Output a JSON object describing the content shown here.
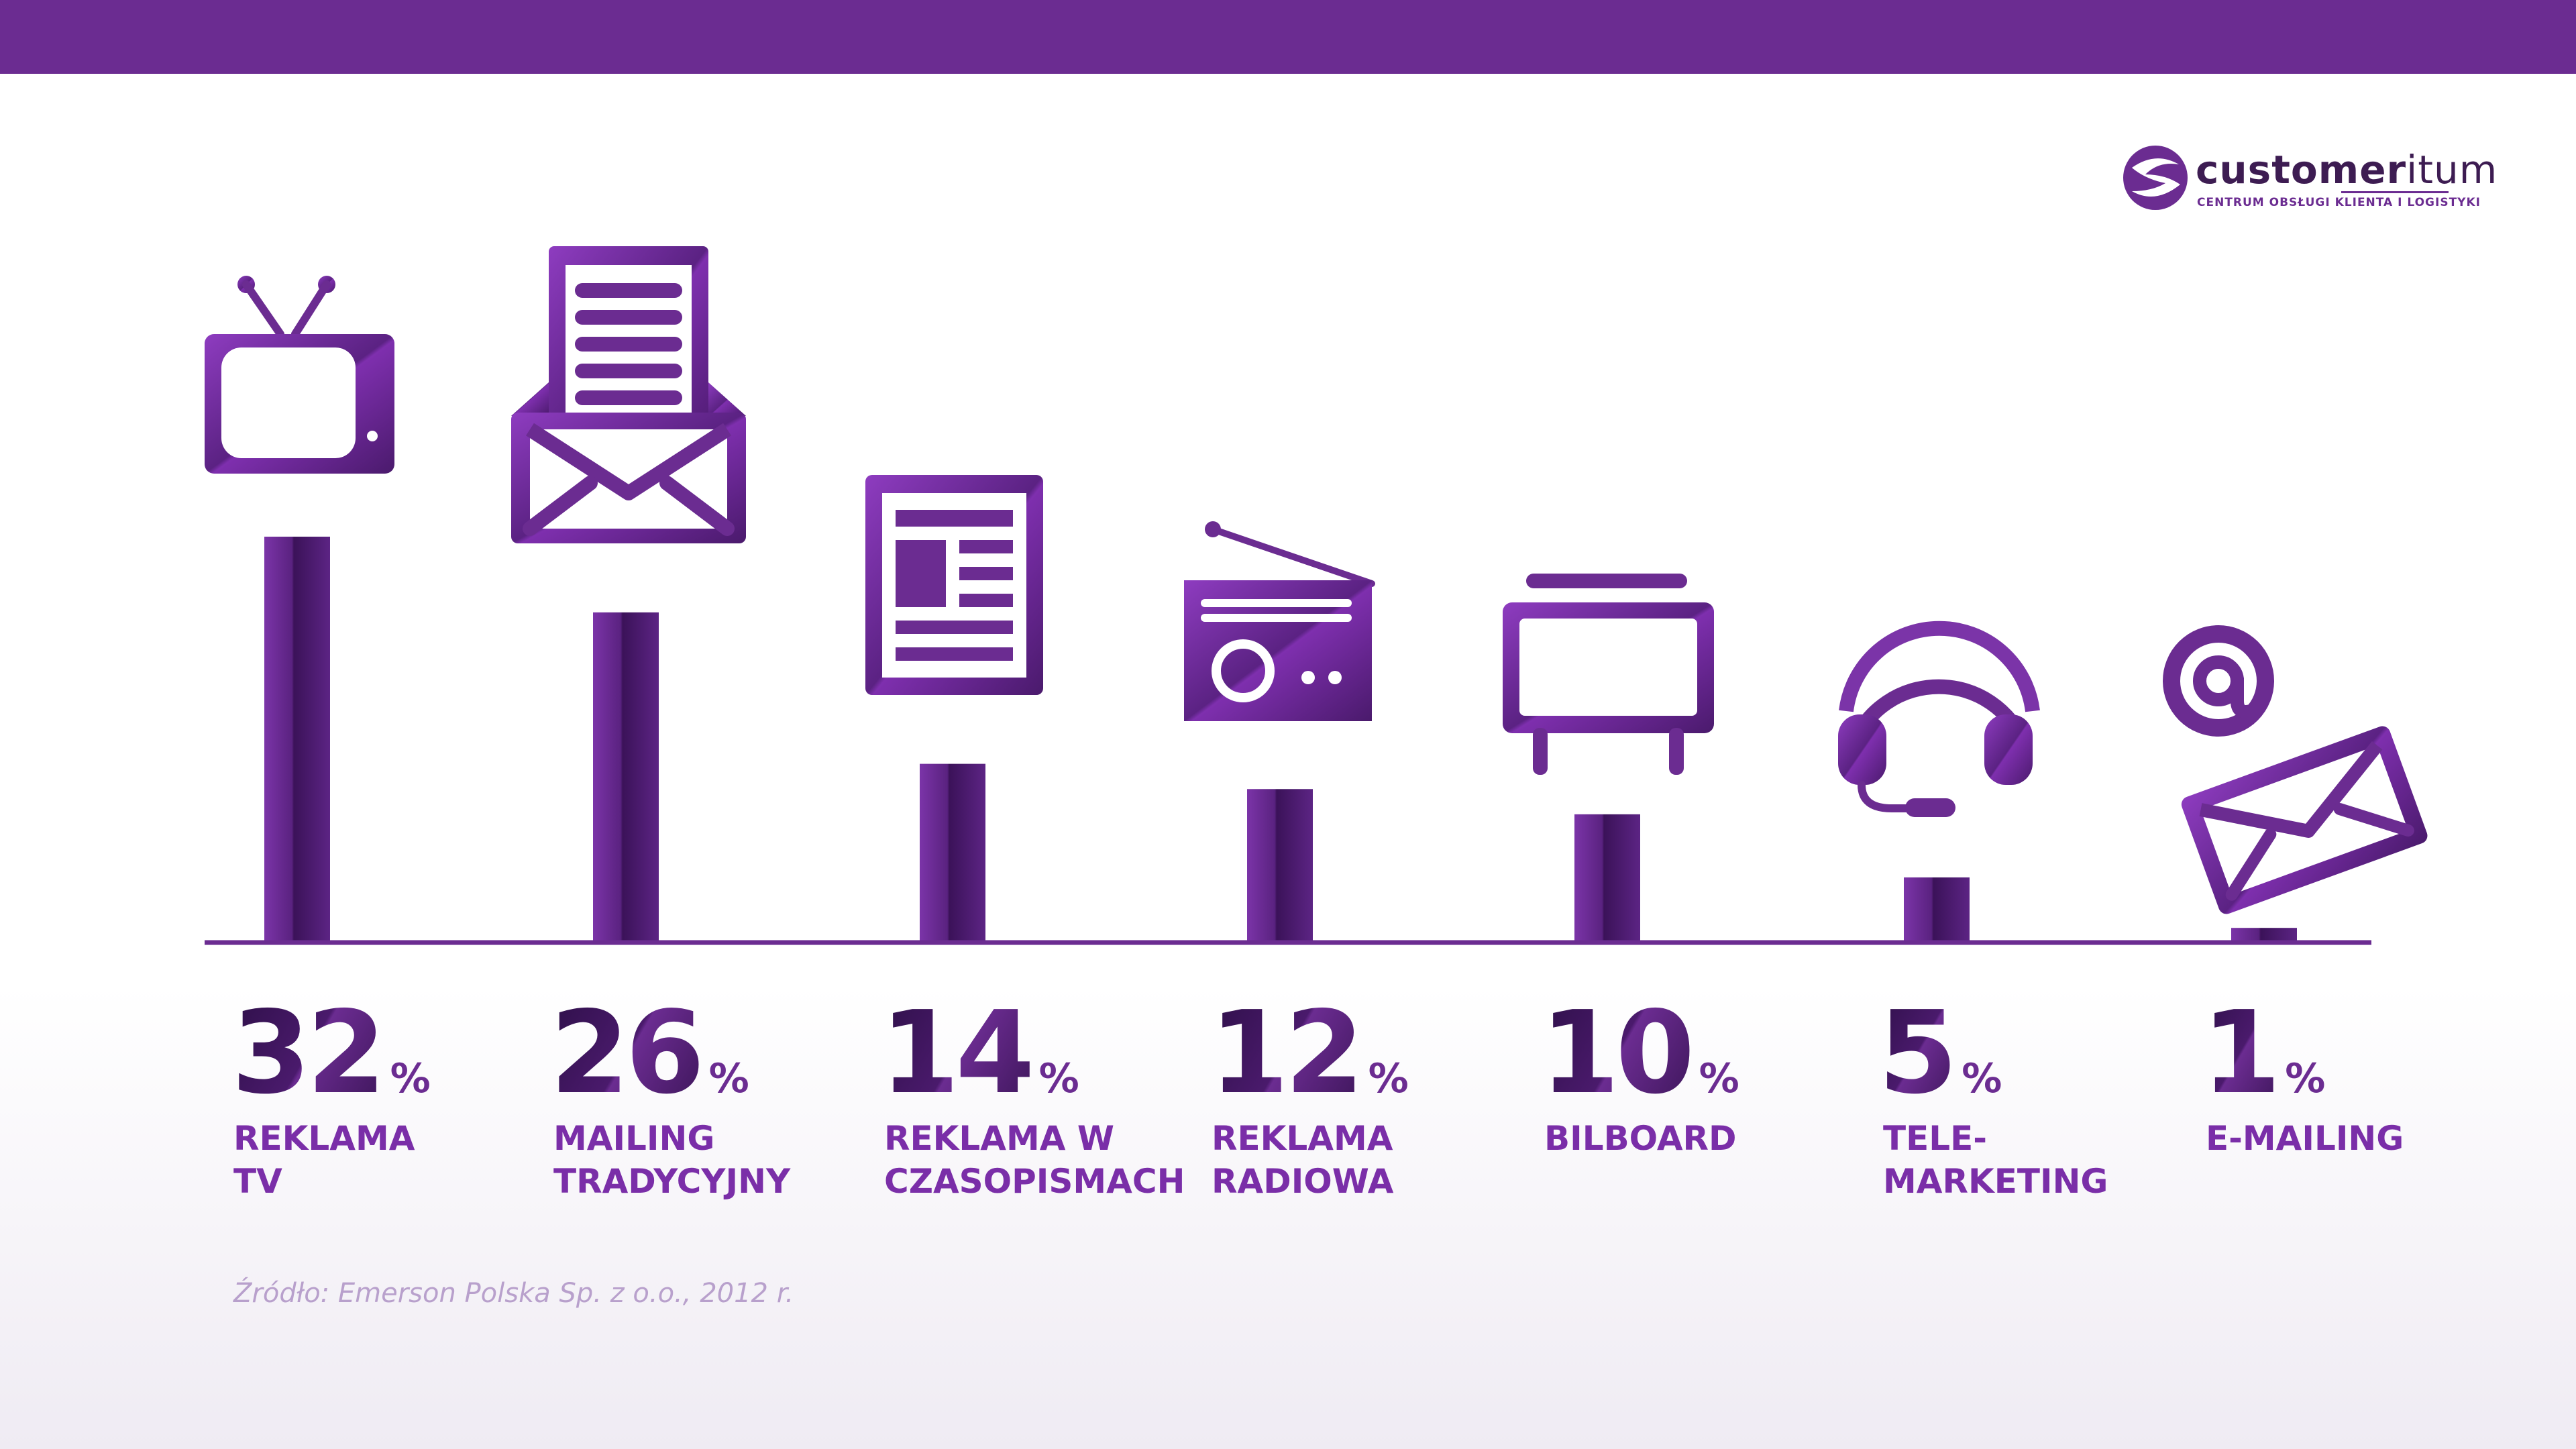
{
  "brand": {
    "name_bold": "customer",
    "name_light": "itum",
    "tagline": "CENTRUM OBSŁUGI KLIENTA I LOGISTYKI",
    "primary_color": "#6b2c91",
    "dark_color": "#3d1c52"
  },
  "source": "Źródło: Emerson Polska Sp. z o.o., 2012 r.",
  "chart_data": {
    "type": "bar",
    "title": "",
    "xlabel": "",
    "ylabel": "",
    "ylim": [
      0,
      32
    ],
    "grid": false,
    "categories": [
      "REKLAMA TV",
      "MAILING TRADYCYJNY",
      "REKLAMA W CZASOPISMACH",
      "REKLAMA RADIOWA",
      "BILBOARD",
      "TELE-MARKETING",
      "E-MAILING"
    ],
    "values": [
      32,
      26,
      14,
      12,
      10,
      5,
      1
    ],
    "unit": "%",
    "items": [
      {
        "label": "REKLAMA\nTV",
        "value": 32,
        "value_text": "32",
        "icon": "tv-icon"
      },
      {
        "label": "MAILING\nTRADYCYJNY",
        "value": 26,
        "value_text": "26",
        "icon": "letter-envelope-icon"
      },
      {
        "label": "REKLAMA W\nCZASOPISMACH",
        "value": 14,
        "value_text": "14",
        "icon": "newspaper-icon"
      },
      {
        "label": "REKLAMA\nRADIOWA",
        "value": 12,
        "value_text": "12",
        "icon": "radio-icon"
      },
      {
        "label": "BILBOARD",
        "value": 10,
        "value_text": "10",
        "icon": "billboard-icon"
      },
      {
        "label": "TELE-\nMARKETING",
        "value": 5,
        "value_text": "5",
        "icon": "headset-icon"
      },
      {
        "label": "E-MAILING",
        "value": 1,
        "value_text": "1",
        "icon": "email-icon"
      }
    ]
  }
}
